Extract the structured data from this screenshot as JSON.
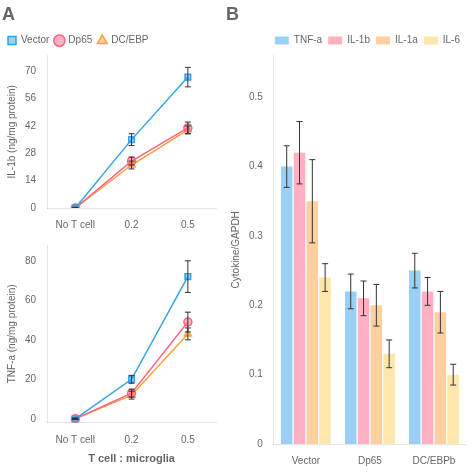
{
  "chart_data": [
    {
      "type": "line",
      "title": "A",
      "categories": [
        "No T cell",
        "0.2",
        "0.5"
      ],
      "ylabel": "IL-1b (ng/mg protein)",
      "ylim": [
        0,
        78
      ],
      "yticks": [
        0,
        14,
        28,
        42,
        56,
        70
      ],
      "grid": false,
      "legend": "upper left",
      "series": [
        {
          "name": "Vector",
          "values": [
            0,
            35,
            67
          ],
          "errors": [
            0.3,
            3,
            5
          ],
          "marker": "square"
        },
        {
          "name": "Dp65",
          "values": [
            0,
            24,
            41
          ],
          "errors": [
            0.3,
            2,
            3
          ],
          "marker": "circle"
        },
        {
          "name": "DC/EBP",
          "values": [
            0,
            22,
            40
          ],
          "errors": [
            0.3,
            2,
            2
          ],
          "marker": "triangle"
        }
      ]
    },
    {
      "type": "line",
      "categories": [
        "No T cell",
        "0.2",
        "0.5"
      ],
      "ylabel": "TNF-a (ng/mg protein)",
      "xlabel": "T cell : microglia",
      "ylim": [
        -2,
        88
      ],
      "yticks": [
        0,
        20,
        40,
        60,
        80
      ],
      "grid": false,
      "series": [
        {
          "values": [
            0,
            20,
            72
          ],
          "errors": [
            0.3,
            2,
            8
          ],
          "marker": "square"
        },
        {
          "values": [
            0,
            13,
            49
          ],
          "errors": [
            0.3,
            2,
            5
          ],
          "marker": "circle"
        },
        {
          "values": [
            0,
            12,
            43
          ],
          "errors": [
            0.3,
            2,
            3
          ],
          "marker": "triangle"
        }
      ]
    },
    {
      "type": "bar",
      "title": "B",
      "categories": [
        "Vector",
        "Dp65",
        "DC/EBPb"
      ],
      "ylabel": "Cytokine/GAPDH",
      "ylim": [
        0,
        0.56
      ],
      "yticks": [
        0,
        0.1,
        0.2,
        0.3,
        0.4,
        0.5
      ],
      "grid": false,
      "legend": "upper right",
      "series": [
        {
          "name": "TNF-a",
          "values": [
            0.4,
            0.22,
            0.25
          ],
          "errors": [
            0.03,
            0.025,
            0.025
          ]
        },
        {
          "name": "IL-1b",
          "values": [
            0.42,
            0.21,
            0.22
          ],
          "errors": [
            0.045,
            0.025,
            0.02
          ]
        },
        {
          "name": "IL-1a",
          "values": [
            0.35,
            0.2,
            0.19
          ],
          "errors": [
            0.06,
            0.03,
            0.03
          ]
        },
        {
          "name": "IL-6",
          "values": [
            0.24,
            0.13,
            0.1
          ],
          "errors": [
            0.02,
            0.02,
            0.015
          ]
        }
      ]
    }
  ]
}
